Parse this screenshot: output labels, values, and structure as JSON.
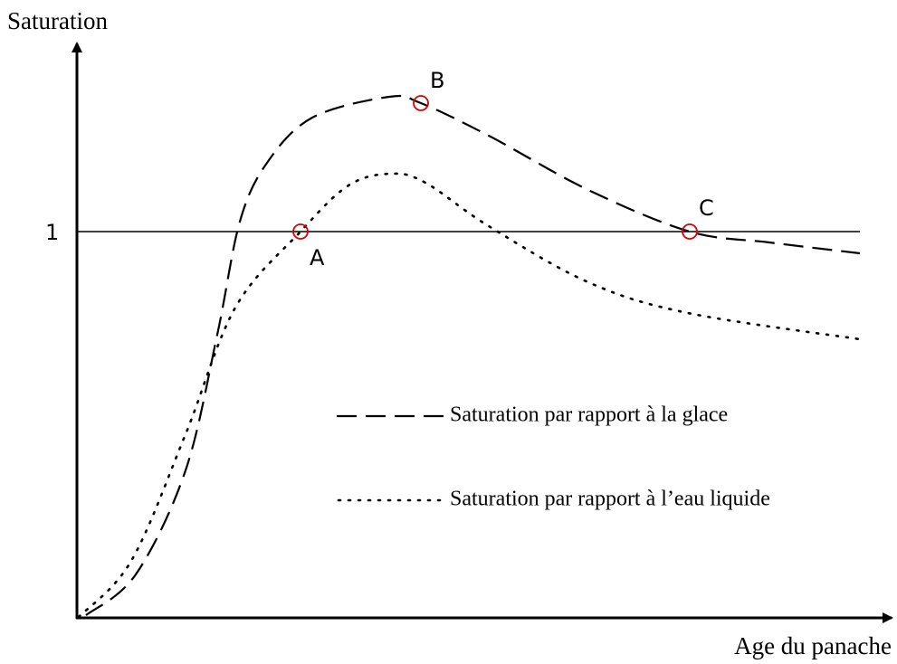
{
  "axes": {
    "y_label": "Saturation",
    "x_label": "Age du panache",
    "reference_label": "1"
  },
  "points": [
    {
      "label": "A"
    },
    {
      "label": "B"
    },
    {
      "label": "C"
    }
  ],
  "legend": [
    {
      "label": "Saturation par rapport à la glace"
    },
    {
      "label": "Saturation par rapport à l’eau liquide"
    }
  ]
}
